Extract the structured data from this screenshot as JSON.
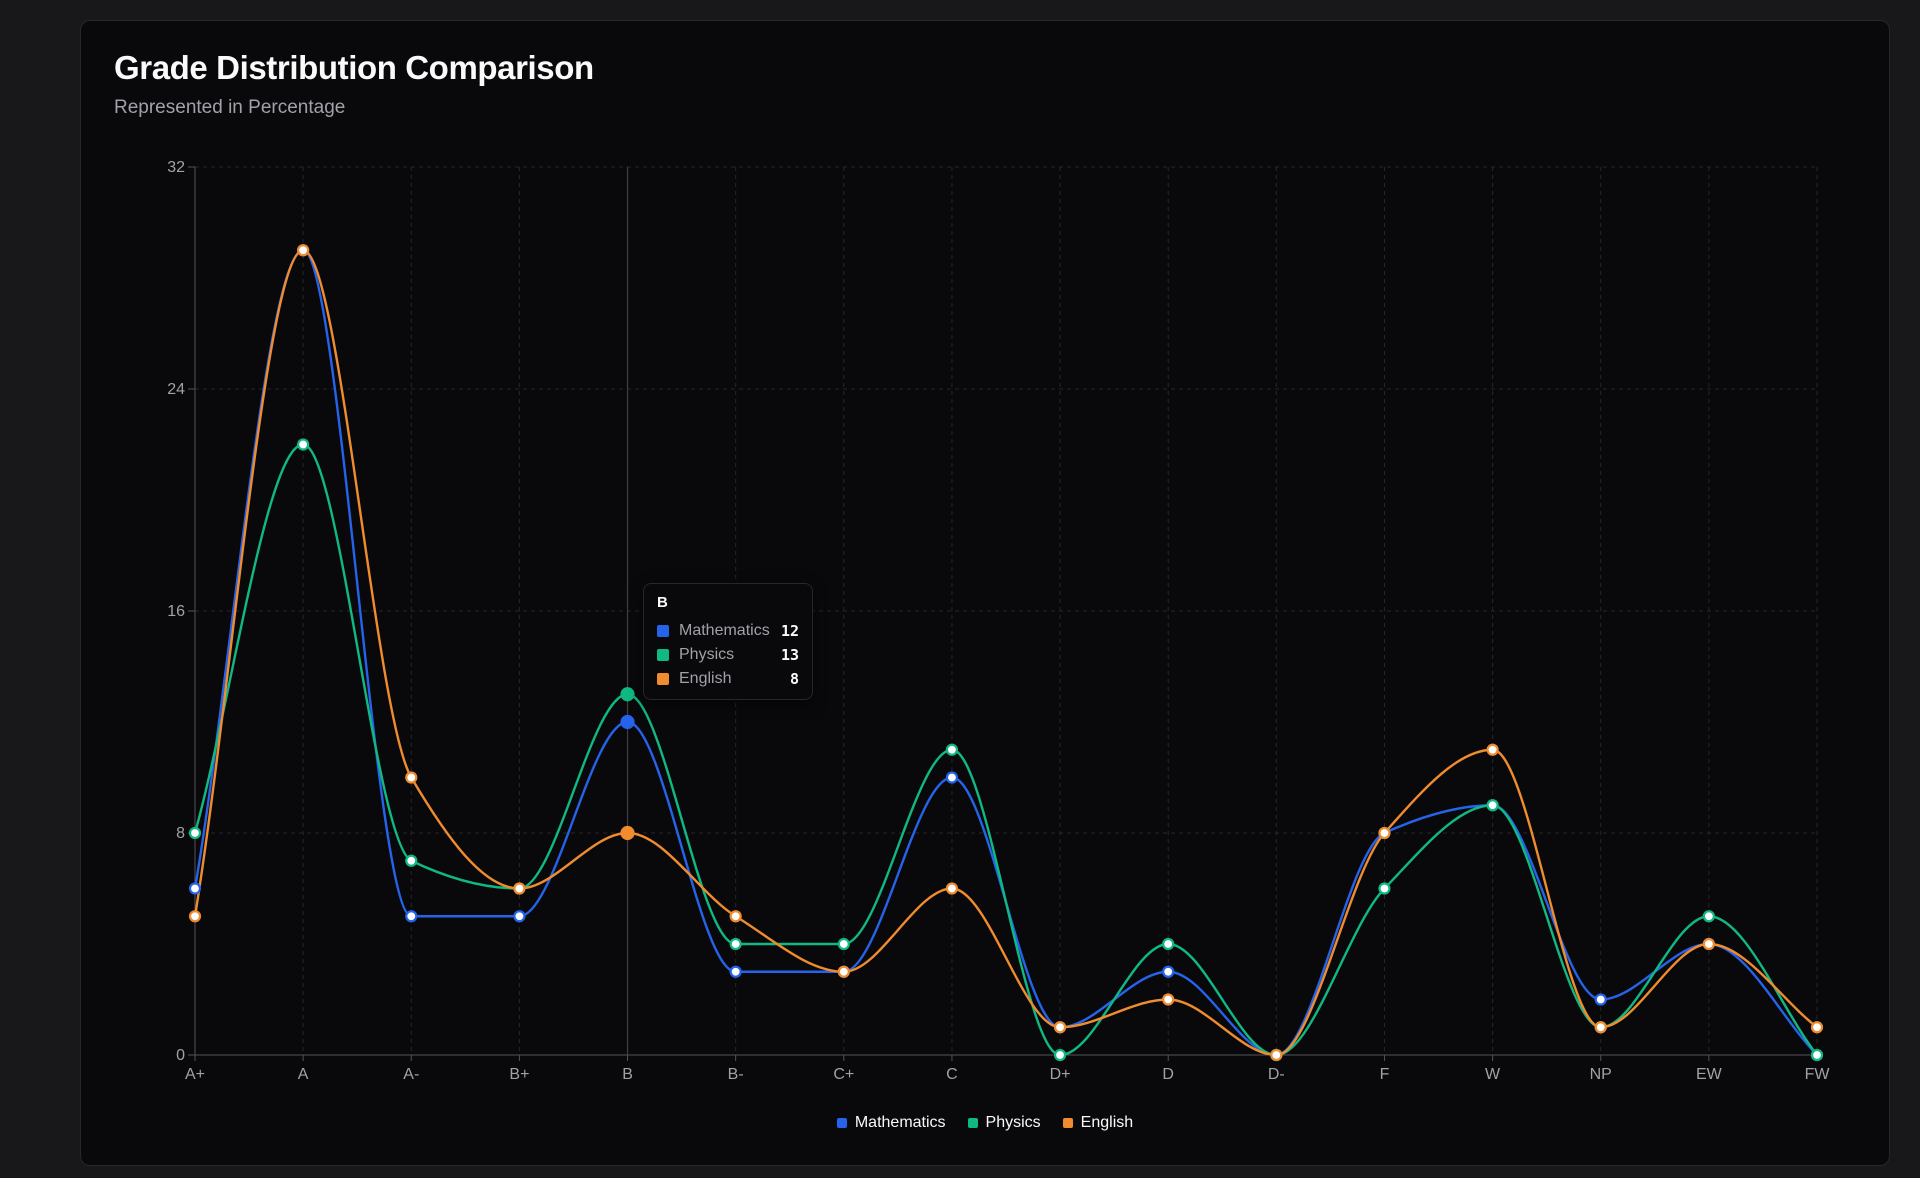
{
  "header": {
    "title": "Grade Distribution Comparison",
    "subtitle": "Represented in Percentage"
  },
  "tooltip": {
    "title": "B",
    "rows": [
      {
        "name": "Mathematics",
        "value": "12",
        "color": "#2563eb"
      },
      {
        "name": "Physics",
        "value": "13",
        "color": "#10b981"
      },
      {
        "name": "English",
        "value": "8",
        "color": "#f08c2e"
      }
    ]
  },
  "legend": {
    "items": [
      {
        "name": "Mathematics",
        "color": "#2563eb"
      },
      {
        "name": "Physics",
        "color": "#10b981"
      },
      {
        "name": "English",
        "color": "#f08c2e"
      }
    ]
  },
  "chart_data": {
    "type": "line",
    "title": "Grade Distribution Comparison",
    "subtitle": "Represented in Percentage",
    "xlabel": "",
    "ylabel": "",
    "categories": [
      "A+",
      "A",
      "A-",
      "B+",
      "B",
      "B-",
      "C+",
      "C",
      "D+",
      "D",
      "D-",
      "F",
      "W",
      "NP",
      "EW",
      "FW"
    ],
    "ylim": [
      0,
      32
    ],
    "yticks": [
      0,
      8,
      16,
      24,
      32
    ],
    "grid": true,
    "legend_position": "bottom-center",
    "highlighted_category": "B",
    "series": [
      {
        "name": "Mathematics",
        "color": "#2563eb",
        "values": [
          6,
          29,
          5,
          5,
          12,
          3,
          3,
          10,
          1,
          3,
          0,
          8,
          9,
          2,
          4,
          0
        ]
      },
      {
        "name": "Physics",
        "color": "#10b981",
        "values": [
          8,
          22,
          7,
          6,
          13,
          4,
          4,
          11,
          0,
          4,
          0,
          6,
          9,
          1,
          5,
          0
        ]
      },
      {
        "name": "English",
        "color": "#f08c2e",
        "values": [
          5,
          29,
          10,
          6,
          8,
          5,
          3,
          6,
          1,
          2,
          0,
          8,
          11,
          1,
          4,
          1
        ]
      }
    ]
  }
}
